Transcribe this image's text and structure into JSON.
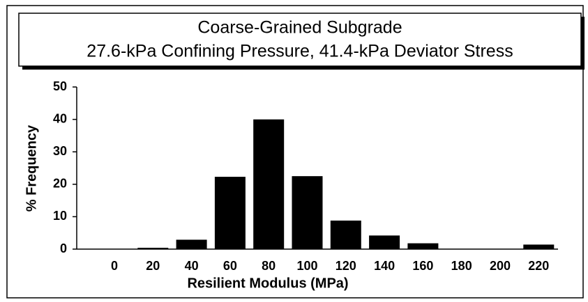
{
  "chart_data": {
    "type": "bar",
    "title": "Coarse-Grained Subgrade",
    "subtitle": "27.6-kPa Confining Pressure, 41.4-kPa Deviator Stress",
    "xlabel": "Resilient Modulus (MPa)",
    "ylabel": "% Frequency",
    "categories": [
      "0",
      "20",
      "40",
      "60",
      "80",
      "100",
      "120",
      "140",
      "160",
      "180",
      "200",
      "220"
    ],
    "values": [
      0,
      0.4,
      2.9,
      22.3,
      40,
      22.5,
      8.8,
      4.2,
      1.8,
      0,
      0,
      1.4
    ],
    "color": "#000000",
    "ylim": [
      0,
      50
    ],
    "yticks": [
      0,
      10,
      20,
      30,
      40,
      50
    ],
    "grid": false
  }
}
